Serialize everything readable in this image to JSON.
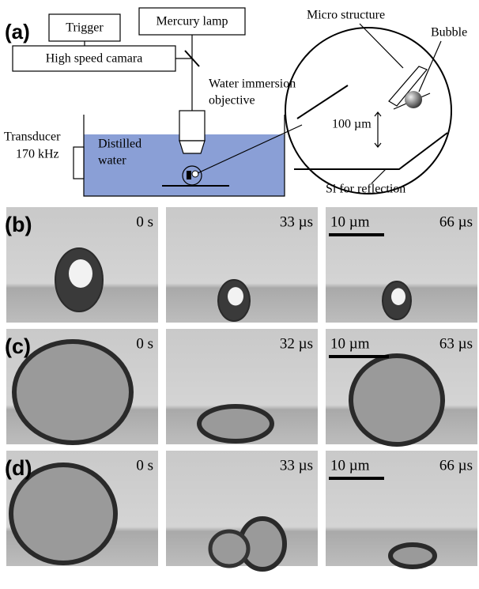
{
  "panel_a": {
    "label": "(a)",
    "trigger": "Trigger",
    "lamp": "Mercury lamp",
    "camera": "High speed camara",
    "objective": [
      "Water immersion",
      "objective"
    ],
    "transducer": [
      "Transducer",
      "170 kHz"
    ],
    "water": [
      "Distilled",
      "water"
    ],
    "micro_structure": "Micro structure",
    "bubble": "Bubble",
    "gap": "100 µm",
    "si": "Si for reflection"
  },
  "rows": [
    {
      "label": "(b)",
      "times": [
        "0 s",
        "33 µs",
        "66 µs"
      ],
      "scale_bar": "10 µm"
    },
    {
      "label": "(c)",
      "times": [
        "0 s",
        "32 µs",
        "63 µs"
      ],
      "scale_bar": "10 µm"
    },
    {
      "label": "(d)",
      "times": [
        "0 s",
        "33 µs",
        "66 µs"
      ],
      "scale_bar": "10 µm"
    }
  ]
}
